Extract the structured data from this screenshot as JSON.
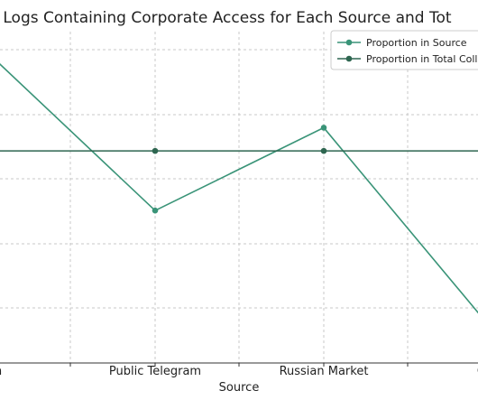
{
  "chart_data": {
    "type": "line",
    "title": "f Logs Containing Corporate Access for Each Source and Tot",
    "xlabel": "Source",
    "ylabel": "",
    "categories": [
      "gram",
      "Public Telegram",
      "Russian Market",
      "Gene"
    ],
    "ylim": [
      0,
      1
    ],
    "grid": true,
    "legend_placement": "top-right",
    "series": [
      {
        "name": "Proportion in Source",
        "color": "#3a9478",
        "values": [
          0.94,
          0.46,
          0.71,
          0.1
        ]
      },
      {
        "name": "Proportion in Total Coll",
        "color": "#2e6650",
        "values": [
          0.64,
          0.64,
          0.64,
          0.64
        ]
      }
    ]
  }
}
